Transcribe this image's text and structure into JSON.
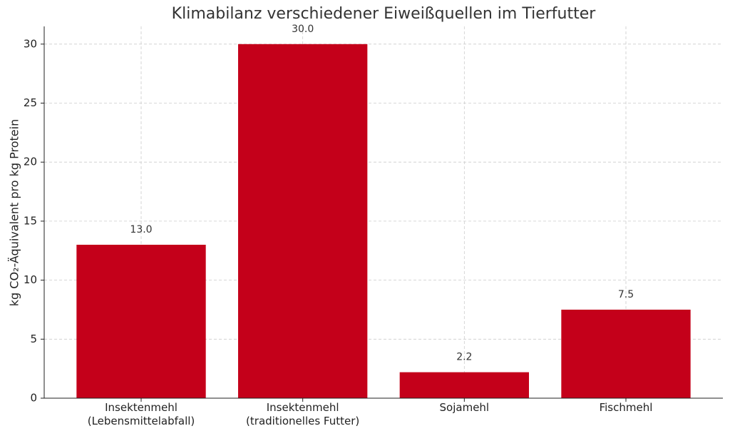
{
  "chart_data": {
    "type": "bar",
    "title": "Klimabilanz verschiedener Eiweißquellen im Tierfutter",
    "y_label": "kg CO₂-Äquivalent pro kg Protein",
    "categories": [
      "Insektenmehl\n(Lebensmittelabfall)",
      "Insektenmehl\n(traditionelles Futter)",
      "Sojamehl",
      "Fischmehl"
    ],
    "values": [
      13,
      30,
      2.2,
      7.5
    ],
    "value_labels": [
      "13.0",
      "30.0",
      "2.2",
      "7.5"
    ],
    "color": "#c4001a",
    "ylim": [
      0,
      31.5
    ],
    "yticks": [
      0,
      5,
      10,
      15,
      20,
      25,
      30
    ],
    "grid": true
  }
}
